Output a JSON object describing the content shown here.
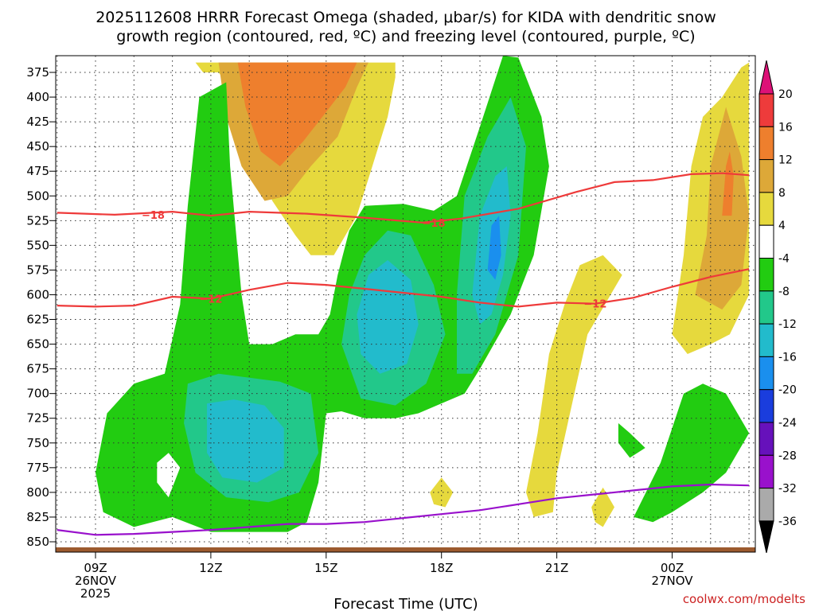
{
  "chart_data": {
    "type": "heatmap",
    "title": {
      "line1": "2025112608 HRRR Forecast Omega (shaded, μbar/s) for KIDA with dendritic snow",
      "line2": "growth region (contoured, red, ºC) and freezing level (contoured, purple, ºC)"
    },
    "xlabel": "Forecast Time (UTC)",
    "credit": "coolwx.com/modelts",
    "x_range_hours": [
      8,
      26
    ],
    "y_range_mb": [
      850,
      365
    ],
    "x_ticks": [
      {
        "hour": 9,
        "lines": [
          "09Z",
          "26NOV",
          "2025"
        ]
      },
      {
        "hour": 12,
        "lines": [
          "12Z"
        ]
      },
      {
        "hour": 15,
        "lines": [
          "15Z"
        ]
      },
      {
        "hour": 18,
        "lines": [
          "18Z"
        ]
      },
      {
        "hour": 21,
        "lines": [
          "21Z"
        ]
      },
      {
        "hour": 24,
        "lines": [
          "00Z",
          "27NOV"
        ]
      }
    ],
    "y_ticks": [
      375,
      400,
      425,
      450,
      475,
      500,
      525,
      550,
      575,
      600,
      625,
      650,
      675,
      700,
      725,
      750,
      775,
      800,
      825,
      850
    ],
    "colorbar": {
      "labels": [
        "20",
        "16",
        "12",
        "8",
        "4",
        "-4",
        "-8",
        "-12",
        "-16",
        "-20",
        "-24",
        "-28",
        "-32",
        "-36"
      ],
      "bins": [
        {
          "color": "#dd1177",
          "range": "> 20"
        },
        {
          "color": "#ee3b3b",
          "range": "16 to 20"
        },
        {
          "color": "#ee7f2d",
          "range": "12 to 16"
        },
        {
          "color": "#dda838",
          "range": "8 to 12"
        },
        {
          "color": "#e6d93d",
          "range": "4 to 8"
        },
        {
          "color": "#ffffff",
          "range": "-4 to 4"
        },
        {
          "color": "#22cc11",
          "range": "-8 to -4"
        },
        {
          "color": "#22c88a",
          "range": "-12 to -8"
        },
        {
          "color": "#22bbcc",
          "range": "-16 to -12"
        },
        {
          "color": "#1a8fee",
          "range": "-20 to -16"
        },
        {
          "color": "#1a3ddd",
          "range": "-24 to -20"
        },
        {
          "color": "#6611bb",
          "range": "-28 to -24"
        },
        {
          "color": "#9911cc",
          "range": "-32 to -28"
        },
        {
          "color": "#aaaaaa",
          "range": "-36 to -32"
        },
        {
          "color": "#000000",
          "range": "< -36"
        }
      ]
    },
    "contours": {
      "dgz_top": {
        "label": "-18",
        "label_at": [
          [
            10.5,
            519
          ],
          [
            17.8,
            527
          ]
        ],
        "points": [
          [
            8,
            517
          ],
          [
            9.5,
            519
          ],
          [
            11,
            516
          ],
          [
            12,
            520
          ],
          [
            13,
            516
          ],
          [
            14.5,
            518
          ],
          [
            16,
            522
          ],
          [
            17.5,
            527
          ],
          [
            18.5,
            523
          ],
          [
            20,
            513
          ],
          [
            21.5,
            496
          ],
          [
            22.5,
            486
          ],
          [
            23.5,
            484
          ],
          [
            24.5,
            478
          ],
          [
            25.3,
            477
          ],
          [
            26,
            479
          ]
        ]
      },
      "dgz_bottom": {
        "label": "-12",
        "label_at": [
          [
            12,
            604
          ],
          [
            22,
            609
          ]
        ],
        "points": [
          [
            8,
            611
          ],
          [
            9,
            612
          ],
          [
            10,
            611
          ],
          [
            11,
            602
          ],
          [
            12,
            604
          ],
          [
            13,
            595
          ],
          [
            14,
            588
          ],
          [
            15,
            590
          ],
          [
            16,
            594
          ],
          [
            17,
            598
          ],
          [
            18,
            602
          ],
          [
            19,
            608
          ],
          [
            20,
            612
          ],
          [
            21,
            608
          ],
          [
            22,
            609
          ],
          [
            23,
            603
          ],
          [
            24,
            592
          ],
          [
            25,
            582
          ],
          [
            26,
            574
          ]
        ]
      },
      "freezing_level": {
        "points": [
          [
            8,
            838
          ],
          [
            9,
            843
          ],
          [
            10,
            842
          ],
          [
            11,
            840
          ],
          [
            12,
            838
          ],
          [
            13,
            835
          ],
          [
            14,
            832
          ],
          [
            15,
            832
          ],
          [
            16,
            830
          ],
          [
            17,
            826
          ],
          [
            18,
            822
          ],
          [
            19,
            818
          ],
          [
            20,
            812
          ],
          [
            21,
            806
          ],
          [
            22,
            802
          ],
          [
            23,
            798
          ],
          [
            24,
            794
          ],
          [
            25,
            792
          ],
          [
            26,
            793
          ]
        ]
      }
    },
    "regions": [
      {
        "bin": "4 to 8",
        "points": [
          [
            11.8,
            375
          ],
          [
            12.2,
            375
          ],
          [
            12.6,
            395
          ],
          [
            13.0,
            455
          ],
          [
            13.6,
            505
          ],
          [
            14.2,
            540
          ],
          [
            14.6,
            560
          ],
          [
            15.2,
            560
          ],
          [
            15.8,
            520
          ],
          [
            16.2,
            470
          ],
          [
            16.6,
            420
          ],
          [
            16.8,
            380
          ],
          [
            16.8,
            365
          ],
          [
            11.6,
            365
          ]
        ]
      },
      {
        "bin": "8 to 12",
        "points": [
          [
            12.2,
            365
          ],
          [
            12.4,
            420
          ],
          [
            12.8,
            470
          ],
          [
            13.4,
            505
          ],
          [
            14.0,
            500
          ],
          [
            14.6,
            470
          ],
          [
            15.3,
            440
          ],
          [
            15.8,
            390
          ],
          [
            16.1,
            365
          ]
        ]
      },
      {
        "bin": "12 to 16",
        "points": [
          [
            12.7,
            365
          ],
          [
            12.9,
            410
          ],
          [
            13.3,
            455
          ],
          [
            13.8,
            470
          ],
          [
            14.4,
            445
          ],
          [
            15.0,
            415
          ],
          [
            15.5,
            390
          ],
          [
            15.8,
            365
          ]
        ]
      },
      {
        "bin": "-8 to -4",
        "points": [
          [
            9.0,
            780
          ],
          [
            9.3,
            720
          ],
          [
            10.0,
            690
          ],
          [
            10.8,
            680
          ],
          [
            11.2,
            610
          ],
          [
            11.4,
            510
          ],
          [
            11.7,
            400
          ],
          [
            12.4,
            385
          ],
          [
            12.5,
            470
          ],
          [
            12.8,
            600
          ],
          [
            13.0,
            650
          ],
          [
            13.6,
            650
          ],
          [
            14.2,
            640
          ],
          [
            14.8,
            640
          ],
          [
            15.1,
            620
          ],
          [
            15.3,
            580
          ],
          [
            15.6,
            535
          ],
          [
            16.0,
            510
          ],
          [
            17.0,
            508
          ],
          [
            17.8,
            515
          ],
          [
            18.4,
            500
          ],
          [
            19.0,
            430
          ],
          [
            19.6,
            340
          ],
          [
            20.0,
            360
          ],
          [
            20.6,
            420
          ],
          [
            20.8,
            470
          ],
          [
            20.4,
            560
          ],
          [
            19.8,
            620
          ],
          [
            19.0,
            675
          ],
          [
            18.6,
            700
          ],
          [
            18.0,
            710
          ],
          [
            17.4,
            720
          ],
          [
            16.8,
            725
          ],
          [
            16.0,
            725
          ],
          [
            15.4,
            718
          ],
          [
            15.0,
            720
          ],
          [
            14.8,
            790
          ],
          [
            14.5,
            830
          ],
          [
            14.0,
            840
          ],
          [
            12.0,
            840
          ],
          [
            11.0,
            825
          ],
          [
            10.0,
            835
          ],
          [
            9.2,
            820
          ]
        ]
      },
      {
        "bin": "-8 to -4",
        "points": [
          [
            23.0,
            825
          ],
          [
            23.7,
            770
          ],
          [
            24.3,
            700
          ],
          [
            24.8,
            690
          ],
          [
            25.4,
            700
          ],
          [
            26.0,
            740
          ],
          [
            25.4,
            780
          ],
          [
            24.8,
            800
          ],
          [
            24.0,
            820
          ],
          [
            23.5,
            830
          ]
        ]
      },
      {
        "bin": "-8 to -4",
        "points": [
          [
            22.6,
            730
          ],
          [
            22.9,
            740
          ],
          [
            23.3,
            755
          ],
          [
            22.9,
            765
          ],
          [
            22.6,
            750
          ]
        ]
      },
      {
        "bin": "-12 to -8",
        "points": [
          [
            11.4,
            690
          ],
          [
            12.2,
            680
          ],
          [
            13.0,
            684
          ],
          [
            13.8,
            688
          ],
          [
            14.6,
            700
          ],
          [
            14.8,
            760
          ],
          [
            14.3,
            800
          ],
          [
            13.5,
            810
          ],
          [
            12.4,
            805
          ],
          [
            11.6,
            780
          ],
          [
            11.3,
            730
          ]
        ]
      },
      {
        "bin": "-12 to -8",
        "points": [
          [
            15.4,
            650
          ],
          [
            15.6,
            600
          ],
          [
            16.0,
            560
          ],
          [
            16.6,
            535
          ],
          [
            17.2,
            540
          ],
          [
            17.8,
            590
          ],
          [
            18.1,
            640
          ],
          [
            17.6,
            690
          ],
          [
            16.8,
            712
          ],
          [
            15.9,
            705
          ]
        ]
      },
      {
        "bin": "-12 to -8",
        "points": [
          [
            18.4,
            680
          ],
          [
            18.4,
            600
          ],
          [
            18.6,
            500
          ],
          [
            19.2,
            440
          ],
          [
            19.8,
            400
          ],
          [
            20.2,
            450
          ],
          [
            20.0,
            560
          ],
          [
            19.4,
            640
          ],
          [
            18.8,
            680
          ]
        ]
      },
      {
        "bin": "-16 to -12",
        "points": [
          [
            11.9,
            710
          ],
          [
            12.6,
            706
          ],
          [
            13.4,
            712
          ],
          [
            13.9,
            735
          ],
          [
            13.9,
            775
          ],
          [
            13.2,
            790
          ],
          [
            12.3,
            785
          ],
          [
            11.9,
            760
          ]
        ]
      },
      {
        "bin": "-16 to -12",
        "points": [
          [
            15.8,
            620
          ],
          [
            16.1,
            580
          ],
          [
            16.6,
            565
          ],
          [
            17.2,
            585
          ],
          [
            17.4,
            630
          ],
          [
            17.1,
            670
          ],
          [
            16.4,
            680
          ],
          [
            15.9,
            660
          ]
        ]
      },
      {
        "bin": "-16 to -12",
        "points": [
          [
            18.8,
            600
          ],
          [
            19.0,
            520
          ],
          [
            19.4,
            480
          ],
          [
            19.7,
            470
          ],
          [
            19.8,
            520
          ],
          [
            19.6,
            580
          ],
          [
            19.3,
            620
          ],
          [
            19.0,
            630
          ]
        ]
      },
      {
        "bin": "-20 to -16",
        "points": [
          [
            19.2,
            575
          ],
          [
            19.3,
            530
          ],
          [
            19.5,
            520
          ],
          [
            19.55,
            560
          ],
          [
            19.4,
            585
          ]
        ]
      },
      {
        "bin": "4 to 8",
        "points": [
          [
            24.0,
            640
          ],
          [
            24.3,
            560
          ],
          [
            24.5,
            470
          ],
          [
            24.8,
            420
          ],
          [
            25.3,
            400
          ],
          [
            25.8,
            370
          ],
          [
            26.0,
            365
          ],
          [
            26.0,
            600
          ],
          [
            25.5,
            640
          ],
          [
            25.0,
            650
          ],
          [
            24.4,
            660
          ]
        ]
      },
      {
        "bin": "8 to 12",
        "points": [
          [
            24.6,
            600
          ],
          [
            24.9,
            540
          ],
          [
            25.0,
            470
          ],
          [
            25.4,
            410
          ],
          [
            25.8,
            460
          ],
          [
            26.0,
            520
          ],
          [
            25.8,
            590
          ],
          [
            25.3,
            615
          ]
        ]
      },
      {
        "bin": "12 to 16",
        "points": [
          [
            25.3,
            520
          ],
          [
            25.4,
            470
          ],
          [
            25.5,
            455
          ],
          [
            25.6,
            480
          ],
          [
            25.55,
            520
          ]
        ]
      },
      {
        "bin": "4 to 8",
        "points": [
          [
            20.2,
            800
          ],
          [
            20.5,
            740
          ],
          [
            20.8,
            660
          ],
          [
            21.2,
            610
          ],
          [
            21.6,
            570
          ],
          [
            22.2,
            560
          ],
          [
            22.7,
            580
          ],
          [
            21.8,
            640
          ],
          [
            21.4,
            710
          ],
          [
            21.0,
            780
          ],
          [
            20.9,
            820
          ],
          [
            20.4,
            825
          ]
        ]
      },
      {
        "bin": "4 to 8",
        "points": [
          [
            17.7,
            800
          ],
          [
            18.0,
            785
          ],
          [
            18.3,
            800
          ],
          [
            18.1,
            815
          ],
          [
            17.8,
            812
          ]
        ]
      },
      {
        "bin": "4 to 8",
        "points": [
          [
            21.9,
            815
          ],
          [
            22.2,
            795
          ],
          [
            22.5,
            815
          ],
          [
            22.2,
            835
          ],
          [
            22.0,
            830
          ]
        ]
      },
      {
        "bin": "-4 to 4",
        "points": [
          [
            10.6,
            770
          ],
          [
            10.9,
            760
          ],
          [
            11.2,
            775
          ],
          [
            10.9,
            805
          ],
          [
            10.6,
            790
          ]
        ]
      }
    ]
  }
}
